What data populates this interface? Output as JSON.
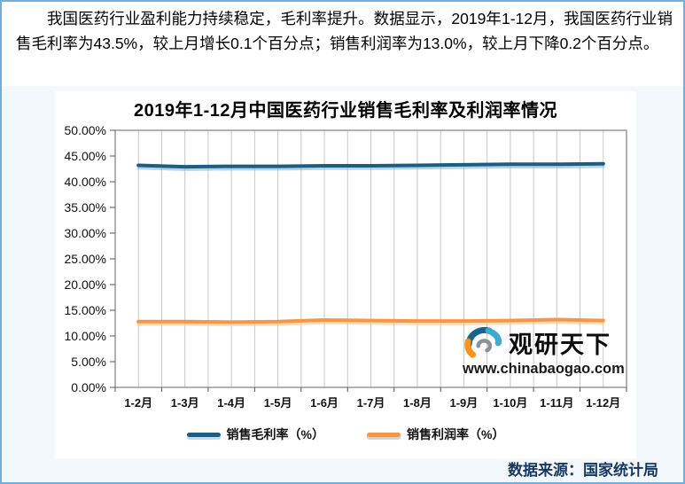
{
  "intro": {
    "text": "我国医药行业盈利能力持续稳定，毛利率提升。数据显示，2019年1-12月，我国医药行业销售毛利率为43.5%，较上月增长0.1个百分点；销售利润率为13.0%，较上月下降0.2个百分点。"
  },
  "chart_data": {
    "type": "line",
    "title": "2019年1-12月中国医药行业销售毛利率及利润率情况",
    "categories": [
      "1-2月",
      "1-3月",
      "1-4月",
      "1-5月",
      "1-6月",
      "1-7月",
      "1-8月",
      "1-9月",
      "1-10月",
      "1-11月",
      "1-12月"
    ],
    "series": [
      {
        "name": "销售毛利率（%）",
        "values": [
          43.2,
          42.9,
          43.0,
          43.0,
          43.1,
          43.1,
          43.2,
          43.3,
          43.4,
          43.4,
          43.5
        ],
        "color": "#1b5e82",
        "shadow_color": "#8fbfd6"
      },
      {
        "name": "销售利润率（%）",
        "values": [
          12.8,
          12.8,
          12.7,
          12.8,
          13.1,
          13.0,
          12.9,
          12.9,
          13.0,
          13.2,
          13.0
        ],
        "color": "#f79646",
        "shadow_color": "#fbc995"
      }
    ],
    "xlabel": "",
    "ylabel": "",
    "ylim": [
      0,
      50
    ],
    "ytick_step": 5,
    "ytick_format": "0.00%",
    "grid": "vertical-minor-and-major",
    "legend_position": "bottom"
  },
  "watermark": {
    "brand": "观研天下",
    "url": "www.chinabaogao.com"
  },
  "source": {
    "text": "数据来源：国家统计局"
  },
  "colors": {
    "page_border": "#74aed8",
    "section_bg": "#f3f8fc",
    "chart_bg": "#ffffff",
    "frame": "#7f7f7f",
    "gridline": "#c6c6c6",
    "tick": "#555555",
    "axis_text": "#111111",
    "source_text": "#17375e"
  }
}
